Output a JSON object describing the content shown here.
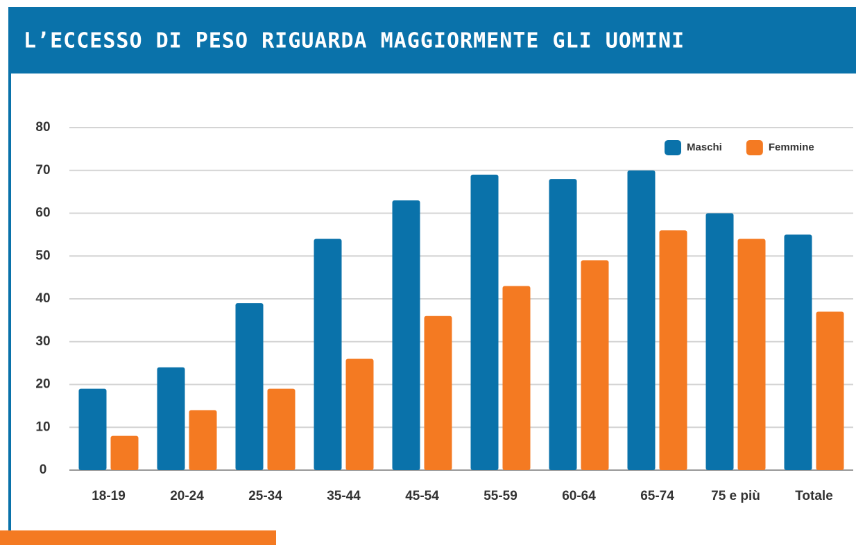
{
  "chart_data": {
    "type": "bar",
    "title": "L’ECCESSO DI PESO RIGUARDA MAGGIORMENTE GLI UOMINI",
    "categories": [
      "18-19",
      "20-24",
      "25-34",
      "35-44",
      "45-54",
      "55-59",
      "60-64",
      "65-74",
      "75 e più",
      "Totale"
    ],
    "series": [
      {
        "name": "Maschi",
        "color": "#0a72aa",
        "values": [
          19,
          24,
          39,
          54,
          63,
          69,
          68,
          70,
          60,
          55
        ]
      },
      {
        "name": "Femmine",
        "color": "#f47a22",
        "values": [
          8,
          14,
          19,
          26,
          36,
          43,
          49,
          56,
          54,
          37
        ]
      }
    ],
    "ylim": [
      0,
      80
    ],
    "yticks": [
      0,
      10,
      20,
      30,
      40,
      50,
      60,
      70,
      80
    ],
    "grid": true,
    "legend": "upper right"
  }
}
